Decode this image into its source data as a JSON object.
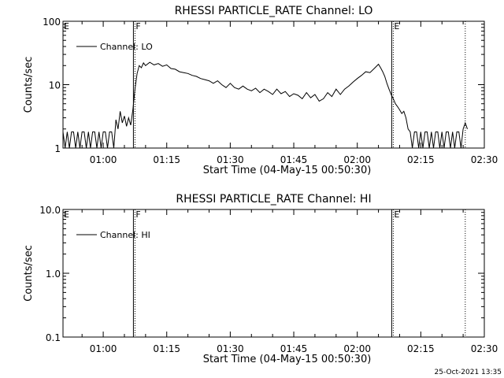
{
  "timestamp": "25-Oct-2021 13:35",
  "chart_data": [
    {
      "type": "line",
      "title": "RHESSI PARTICLE_RATE Channel: LO",
      "xlabel": "Start Time (04-May-15 00:50:30)",
      "ylabel": "Counts/sec",
      "xlim": [
        "00:50:30",
        "02:30:00"
      ],
      "ylim": [
        1,
        100
      ],
      "yscale": "log",
      "xticks": [
        "01:00",
        "01:15",
        "01:30",
        "01:45",
        "02:00",
        "02:15",
        "02:30"
      ],
      "yticks": [
        "1",
        "10",
        "100"
      ],
      "legend": {
        "placement": "top-left",
        "entries": [
          "Channel: LO"
        ]
      },
      "markers": [
        {
          "label": "E",
          "time": "00:50:30",
          "style": "none"
        },
        {
          "label": "F",
          "time": "01:07:30",
          "style": "solid+dotted"
        },
        {
          "label": "E",
          "time": "02:08:30",
          "style": "solid+dotted"
        },
        {
          "label": "",
          "time": "02:25:30",
          "style": "dotted"
        }
      ],
      "series": [
        {
          "name": "Channel: LO",
          "points": [
            [
              "00:50:30",
              1.8
            ],
            [
              "00:51:00",
              1.0
            ],
            [
              "00:51:30",
              1.8
            ],
            [
              "00:52:00",
              1.0
            ],
            [
              "00:52:30",
              1.8
            ],
            [
              "00:53:00",
              1.8
            ],
            [
              "00:53:30",
              1.0
            ],
            [
              "00:54:00",
              1.8
            ],
            [
              "00:54:30",
              1.0
            ],
            [
              "00:55:00",
              1.8
            ],
            [
              "00:55:30",
              1.8
            ],
            [
              "00:56:00",
              1.0
            ],
            [
              "00:56:30",
              1.8
            ],
            [
              "00:57:00",
              1.0
            ],
            [
              "00:57:30",
              1.8
            ],
            [
              "00:58:00",
              1.8
            ],
            [
              "00:58:30",
              1.0
            ],
            [
              "00:59:00",
              1.8
            ],
            [
              "00:59:30",
              1.0
            ],
            [
              "01:00:00",
              1.8
            ],
            [
              "01:00:30",
              1.8
            ],
            [
              "01:01:00",
              1.0
            ],
            [
              "01:01:30",
              1.8
            ],
            [
              "01:02:00",
              1.8
            ],
            [
              "01:02:30",
              1.0
            ],
            [
              "01:03:00",
              2.8
            ],
            [
              "01:03:30",
              2.0
            ],
            [
              "01:04:00",
              3.8
            ],
            [
              "01:04:30",
              2.5
            ],
            [
              "01:05:00",
              3.2
            ],
            [
              "01:05:30",
              2.2
            ],
            [
              "01:06:00",
              3.0
            ],
            [
              "01:06:30",
              2.3
            ],
            [
              "01:07:00",
              4.0
            ],
            [
              "01:07:30",
              8.5
            ],
            [
              "01:08:00",
              15.0
            ],
            [
              "01:08:30",
              20.0
            ],
            [
              "01:09:00",
              18.5
            ],
            [
              "01:09:30",
              22.0
            ],
            [
              "01:10:00",
              20.0
            ],
            [
              "01:11:00",
              22.5
            ],
            [
              "01:12:00",
              20.5
            ],
            [
              "01:13:00",
              21.5
            ],
            [
              "01:14:00",
              19.5
            ],
            [
              "01:15:00",
              20.5
            ],
            [
              "01:16:00",
              18.0
            ],
            [
              "01:17:00",
              17.5
            ],
            [
              "01:18:00",
              16.0
            ],
            [
              "01:19:00",
              15.5
            ],
            [
              "01:20:00",
              15.0
            ],
            [
              "01:21:00",
              14.0
            ],
            [
              "01:22:00",
              13.5
            ],
            [
              "01:23:00",
              12.5
            ],
            [
              "01:24:00",
              12.0
            ],
            [
              "01:25:00",
              11.5
            ],
            [
              "01:26:00",
              10.5
            ],
            [
              "01:27:00",
              11.5
            ],
            [
              "01:28:00",
              10.0
            ],
            [
              "01:29:00",
              9.0
            ],
            [
              "01:30:00",
              10.5
            ],
            [
              "01:31:00",
              9.0
            ],
            [
              "01:32:00",
              8.5
            ],
            [
              "01:33:00",
              9.5
            ],
            [
              "01:34:00",
              8.5
            ],
            [
              "01:35:00",
              8.0
            ],
            [
              "01:36:00",
              8.8
            ],
            [
              "01:37:00",
              7.5
            ],
            [
              "01:38:00",
              8.5
            ],
            [
              "01:39:00",
              7.8
            ],
            [
              "01:40:00",
              7.0
            ],
            [
              "01:41:00",
              8.5
            ],
            [
              "01:42:00",
              7.2
            ],
            [
              "01:43:00",
              7.8
            ],
            [
              "01:44:00",
              6.5
            ],
            [
              "01:45:00",
              7.2
            ],
            [
              "01:46:00",
              6.8
            ],
            [
              "01:47:00",
              6.0
            ],
            [
              "01:48:00",
              7.5
            ],
            [
              "01:49:00",
              6.2
            ],
            [
              "01:50:00",
              7.0
            ],
            [
              "01:51:00",
              5.5
            ],
            [
              "01:52:00",
              6.0
            ],
            [
              "01:53:00",
              7.5
            ],
            [
              "01:54:00",
              6.5
            ],
            [
              "01:55:00",
              8.5
            ],
            [
              "01:56:00",
              7.0
            ],
            [
              "01:57:00",
              8.5
            ],
            [
              "01:58:00",
              9.5
            ],
            [
              "01:59:00",
              11.0
            ],
            [
              "02:00:00",
              12.5
            ],
            [
              "02:01:00",
              14.0
            ],
            [
              "02:02:00",
              16.0
            ],
            [
              "02:03:00",
              15.5
            ],
            [
              "02:04:00",
              18.0
            ],
            [
              "02:05:00",
              21.0
            ],
            [
              "02:05:30",
              18.5
            ],
            [
              "02:06:00",
              16.0
            ],
            [
              "02:06:30",
              13.5
            ],
            [
              "02:07:00",
              10.5
            ],
            [
              "02:07:30",
              8.5
            ],
            [
              "02:08:00",
              7.0
            ],
            [
              "02:08:30",
              6.0
            ],
            [
              "02:09:00",
              5.0
            ],
            [
              "02:09:30",
              4.5
            ],
            [
              "02:10:00",
              4.0
            ],
            [
              "02:10:30",
              3.5
            ],
            [
              "02:11:00",
              3.8
            ],
            [
              "02:11:30",
              3.0
            ],
            [
              "02:12:00",
              2.0
            ],
            [
              "02:12:30",
              1.8
            ],
            [
              "02:13:00",
              1.0
            ],
            [
              "02:13:30",
              1.8
            ],
            [
              "02:14:00",
              1.8
            ],
            [
              "02:14:30",
              1.0
            ],
            [
              "02:15:00",
              1.8
            ],
            [
              "02:15:30",
              1.0
            ],
            [
              "02:16:00",
              1.8
            ],
            [
              "02:16:30",
              1.8
            ],
            [
              "02:17:00",
              1.0
            ],
            [
              "02:17:30",
              1.8
            ],
            [
              "02:18:00",
              1.0
            ],
            [
              "02:18:30",
              1.8
            ],
            [
              "02:19:00",
              1.8
            ],
            [
              "02:19:30",
              1.0
            ],
            [
              "02:20:00",
              1.8
            ],
            [
              "02:20:30",
              1.0
            ],
            [
              "02:21:00",
              1.8
            ],
            [
              "02:21:30",
              1.8
            ],
            [
              "02:22:00",
              1.0
            ],
            [
              "02:22:30",
              1.8
            ],
            [
              "02:23:00",
              1.0
            ],
            [
              "02:23:30",
              1.8
            ],
            [
              "02:24:00",
              1.8
            ],
            [
              "02:24:30",
              1.0
            ],
            [
              "02:25:00",
              2.0
            ],
            [
              "02:25:30",
              2.5
            ],
            [
              "02:26:00",
              2.0
            ]
          ]
        }
      ]
    },
    {
      "type": "line",
      "title": "RHESSI PARTICLE_RATE Channel: HI",
      "xlabel": "Start Time (04-May-15 00:50:30)",
      "ylabel": "Counts/sec",
      "xlim": [
        "00:50:30",
        "02:30:00"
      ],
      "ylim": [
        0.1,
        10
      ],
      "yscale": "log",
      "xticks": [
        "01:00",
        "01:15",
        "01:30",
        "01:45",
        "02:00",
        "02:15",
        "02:30"
      ],
      "yticks": [
        "0.1",
        "1.0",
        "10.0"
      ],
      "legend": {
        "placement": "top-left",
        "entries": [
          "Channel: HI"
        ]
      },
      "markers": [
        {
          "label": "E",
          "time": "00:50:30",
          "style": "none"
        },
        {
          "label": "F",
          "time": "01:07:30",
          "style": "solid+dotted"
        },
        {
          "label": "E",
          "time": "02:08:30",
          "style": "solid+dotted"
        },
        {
          "label": "",
          "time": "02:25:30",
          "style": "dotted"
        }
      ],
      "series": [
        {
          "name": "Channel: HI",
          "points": []
        }
      ]
    }
  ]
}
